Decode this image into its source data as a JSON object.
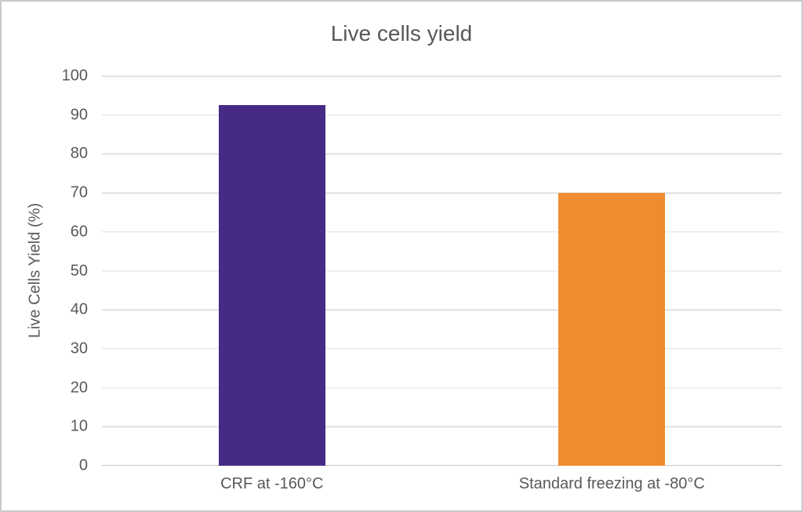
{
  "chart_data": {
    "type": "bar",
    "title": "Live cells yield",
    "categories": [
      "CRF at -160°C",
      "Standard freezing at -80°C"
    ],
    "values": [
      92.5,
      70
    ],
    "bar_colors": [
      "#472A85",
      "#F08B30"
    ],
    "xlabel": "",
    "ylabel": "Live Cells Yield (%)",
    "ylim": [
      0,
      100
    ],
    "ytick_interval": 10,
    "ytick_labels": [
      "0",
      "10",
      "20",
      "30",
      "40",
      "50",
      "60",
      "70",
      "80",
      "90",
      "100"
    ],
    "grid": true,
    "legend": false
  },
  "colors": {
    "text": "#595959",
    "gridline": "#E0E0E0",
    "baseline": "#C6C6C6",
    "frame_border": "#C9C9C9",
    "background": "#FFFFFF"
  }
}
